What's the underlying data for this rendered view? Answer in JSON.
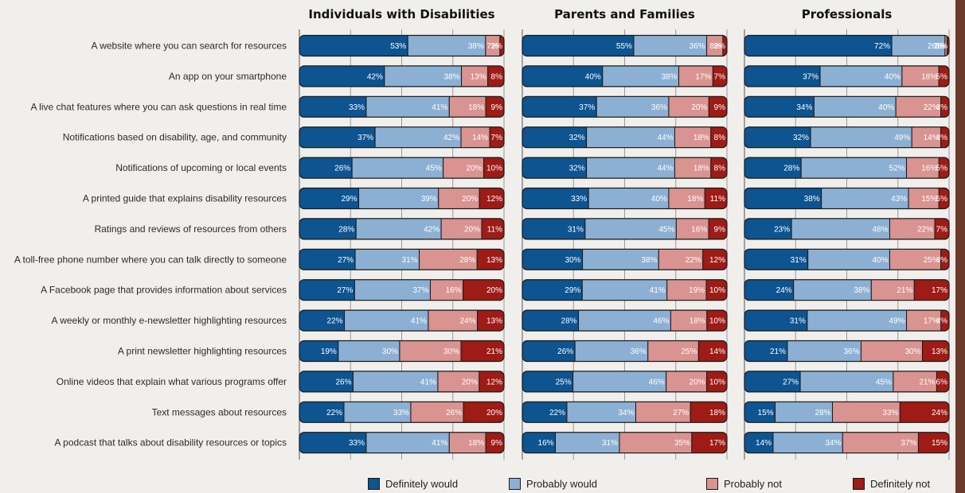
{
  "chart_data": {
    "type": "bar",
    "orientation": "horizontal",
    "stacked": true,
    "normalized_percent": true,
    "legend_position": "bottom",
    "legend": [
      "Definitely would",
      "Probably would",
      "Probably not",
      "Definitely not"
    ],
    "colors": [
      "#0d5491",
      "#8cb0d3",
      "#d99390",
      "#9e1b16"
    ],
    "categories": [
      "A website where you can search for resources",
      "An app on your smartphone",
      "A live chat features where you can ask questions in real time",
      "Notifications based on disability, age, and community",
      "Notifications of upcoming or local events",
      "A printed guide that explains disability resources",
      "Ratings and reviews of resources from others",
      "A toll-free phone number where you can talk directly to someone",
      "A Facebook page that provides information about services",
      "A weekly or monthly e-newsletter highlighting resources",
      "A print newsletter highlighting resources",
      "Online videos that explain what various programs offer",
      "Text messages about resources",
      "A podcast that talks about disability resources or topics"
    ],
    "panels": [
      {
        "title": "Individuals with Disabilities",
        "values": [
          [
            53,
            38,
            7,
            2
          ],
          [
            42,
            38,
            13,
            8
          ],
          [
            33,
            41,
            18,
            9
          ],
          [
            37,
            42,
            14,
            7
          ],
          [
            26,
            45,
            20,
            10
          ],
          [
            29,
            39,
            20,
            12
          ],
          [
            28,
            42,
            20,
            11
          ],
          [
            27,
            31,
            28,
            13
          ],
          [
            27,
            37,
            16,
            20
          ],
          [
            22,
            41,
            24,
            13
          ],
          [
            19,
            30,
            30,
            21
          ],
          [
            26,
            41,
            20,
            12
          ],
          [
            22,
            33,
            26,
            20
          ],
          [
            33,
            41,
            18,
            9
          ]
        ]
      },
      {
        "title": "Parents and Families",
        "values": [
          [
            55,
            36,
            8,
            2
          ],
          [
            40,
            38,
            17,
            7
          ],
          [
            37,
            36,
            20,
            9
          ],
          [
            32,
            44,
            18,
            8
          ],
          [
            32,
            44,
            18,
            8
          ],
          [
            33,
            40,
            18,
            11
          ],
          [
            31,
            45,
            16,
            9
          ],
          [
            30,
            38,
            22,
            12
          ],
          [
            29,
            41,
            19,
            10
          ],
          [
            28,
            46,
            18,
            10
          ],
          [
            26,
            36,
            25,
            14
          ],
          [
            25,
            46,
            20,
            10
          ],
          [
            22,
            34,
            27,
            18
          ],
          [
            16,
            31,
            35,
            17
          ]
        ]
      },
      {
        "title": "Professionals",
        "values": [
          [
            72,
            26,
            1,
            1
          ],
          [
            37,
            40,
            18,
            5
          ],
          [
            34,
            40,
            22,
            4
          ],
          [
            32,
            49,
            14,
            4
          ],
          [
            28,
            52,
            16,
            5
          ],
          [
            38,
            43,
            15,
            5
          ],
          [
            23,
            48,
            22,
            7
          ],
          [
            31,
            40,
            25,
            4
          ],
          [
            24,
            38,
            21,
            17
          ],
          [
            31,
            49,
            17,
            4
          ],
          [
            21,
            36,
            30,
            13
          ],
          [
            27,
            45,
            21,
            6
          ],
          [
            15,
            28,
            33,
            24
          ],
          [
            14,
            34,
            37,
            15
          ]
        ]
      }
    ]
  }
}
